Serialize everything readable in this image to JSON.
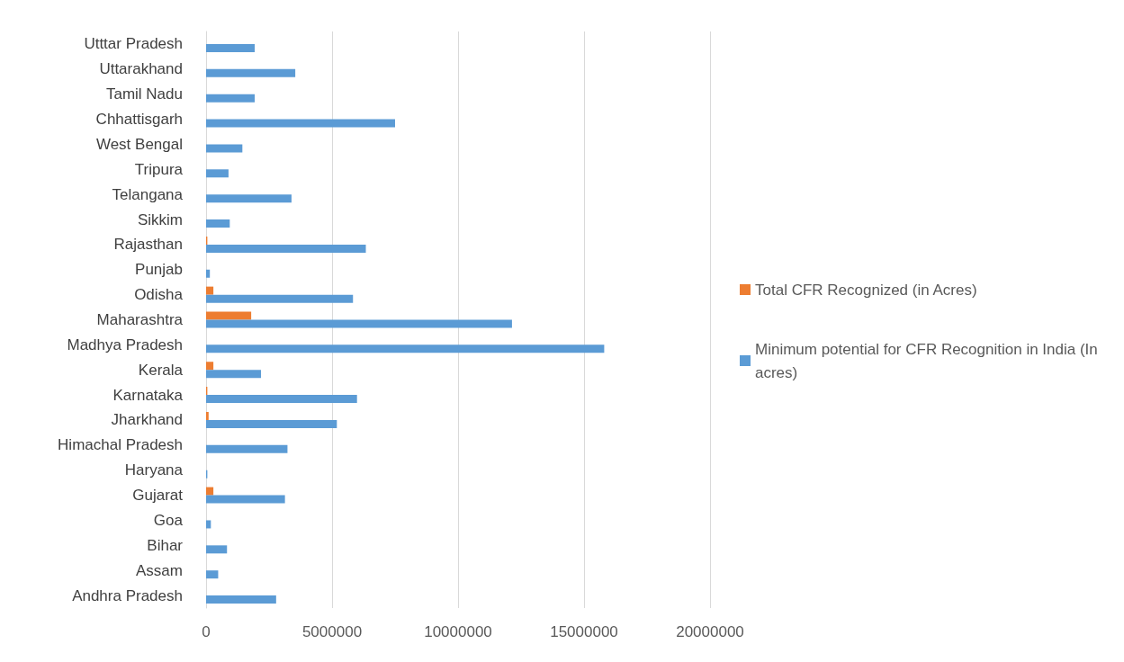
{
  "chart_data": {
    "type": "bar",
    "orientation": "horizontal",
    "categories": [
      "Utttar Pradesh",
      "Uttarakhand",
      "Tamil Nadu",
      "Chhattisgarh",
      "West Bengal",
      "Tripura",
      "Telangana",
      "Sikkim",
      "Rajasthan",
      "Punjab",
      "Odisha",
      "Maharashtra",
      "Madhya Pradesh",
      "Kerala",
      "Karnataka",
      "Jharkhand",
      "Himachal Pradesh",
      "Haryana",
      "Gujarat",
      "Goa",
      "Bihar",
      "Assam",
      "Andhra Pradesh"
    ],
    "series": [
      {
        "name": "Total CFR Recognized (in Acres)",
        "color": "#ed7d31",
        "values": [
          0,
          0,
          0,
          0,
          0,
          0,
          0,
          0,
          50000,
          0,
          290000,
          1790000,
          0,
          290000,
          50000,
          100000,
          0,
          0,
          290000,
          0,
          0,
          0,
          0
        ]
      },
      {
        "name": "Minimum potential for CFR Recognition in India (In acres)",
        "color": "#5b9bd5",
        "values": [
          1930000,
          3540000,
          1930000,
          7500000,
          1440000,
          890000,
          3390000,
          940000,
          6340000,
          150000,
          5830000,
          12140000,
          15800000,
          2180000,
          5990000,
          5190000,
          3230000,
          50000,
          3130000,
          190000,
          830000,
          480000,
          2780000
        ]
      }
    ],
    "xlim": [
      0,
      20000000
    ],
    "xticks": [
      0,
      5000000,
      10000000,
      15000000,
      20000000
    ],
    "grid": "x",
    "legend": "right"
  }
}
